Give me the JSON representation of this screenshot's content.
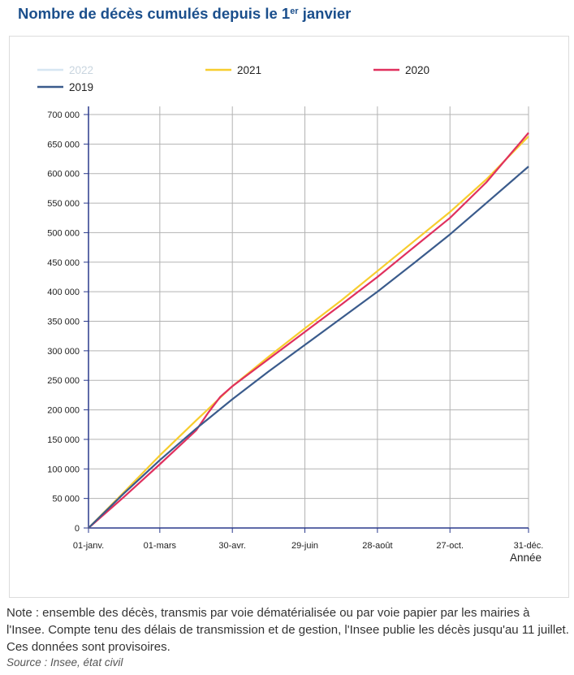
{
  "title_main": "Nombre de décès cumulés depuis le 1",
  "title_sup": "er",
  "title_end": " janvier",
  "note": "Note : ensemble des décès, transmis par voie dématérialisée ou par voie papier par les mairies à l'Insee. Compte tenu des délais de transmission et de gestion, l'Insee publie les décès jusqu'au 11 juillet. Ces données sont provisoires.",
  "source": "Source : Insee, état civil",
  "chart_data": {
    "type": "line",
    "title": "Nombre de décès cumulés depuis le 1er janvier",
    "xlabel": "Année",
    "ylabel": "",
    "xlim": [
      1,
      365
    ],
    "ylim": [
      0,
      700000
    ],
    "x_ticks": [
      {
        "day": 1,
        "label": "01-janv."
      },
      {
        "day": 60,
        "label": "01-mars"
      },
      {
        "day": 120,
        "label": "30-avr."
      },
      {
        "day": 180,
        "label": "29-juin"
      },
      {
        "day": 240,
        "label": "28-août"
      },
      {
        "day": 300,
        "label": "27-oct."
      },
      {
        "day": 365,
        "label": "31-déc."
      }
    ],
    "y_ticks": [
      {
        "value": 0,
        "label": "0"
      },
      {
        "value": 50000,
        "label": "50 000"
      },
      {
        "value": 100000,
        "label": "100 000"
      },
      {
        "value": 150000,
        "label": "150 000"
      },
      {
        "value": 200000,
        "label": "200 000"
      },
      {
        "value": 250000,
        "label": "250 000"
      },
      {
        "value": 300000,
        "label": "300 000"
      },
      {
        "value": 350000,
        "label": "350 000"
      },
      {
        "value": 400000,
        "label": "400 000"
      },
      {
        "value": 450000,
        "label": "450 000"
      },
      {
        "value": 500000,
        "label": "500 000"
      },
      {
        "value": 550000,
        "label": "550 000"
      },
      {
        "value": 600000,
        "label": "600 000"
      },
      {
        "value": 650000,
        "label": "650 000"
      },
      {
        "value": 700000,
        "label": "700 000"
      }
    ],
    "grid": true,
    "legend_position": "top",
    "series": [
      {
        "name": "2022",
        "color": "#d6e6f2",
        "x": [],
        "y": []
      },
      {
        "name": "2021",
        "color": "#f7cd2e",
        "x": [
          1,
          30,
          60,
          90,
          120,
          150,
          180,
          210,
          240,
          270,
          300,
          330,
          365
        ],
        "y": [
          0,
          60000,
          123000,
          182000,
          240000,
          290000,
          338000,
          385000,
          435000,
          485000,
          535000,
          590000,
          663000
        ]
      },
      {
        "name": "2020",
        "color": "#e0305e",
        "x": [
          1,
          30,
          60,
          90,
          100,
          110,
          120,
          150,
          180,
          210,
          240,
          270,
          300,
          330,
          365
        ],
        "y": [
          0,
          52000,
          108000,
          165000,
          195000,
          222000,
          240000,
          286000,
          332000,
          378000,
          425000,
          475000,
          525000,
          585000,
          669000
        ]
      },
      {
        "name": "2019",
        "color": "#3a5b8c",
        "x": [
          1,
          30,
          60,
          90,
          120,
          150,
          180,
          210,
          240,
          270,
          300,
          330,
          365
        ],
        "y": [
          0,
          58000,
          115000,
          168000,
          218000,
          265000,
          310000,
          355000,
          400000,
          448000,
          497000,
          550000,
          612000
        ]
      }
    ]
  }
}
